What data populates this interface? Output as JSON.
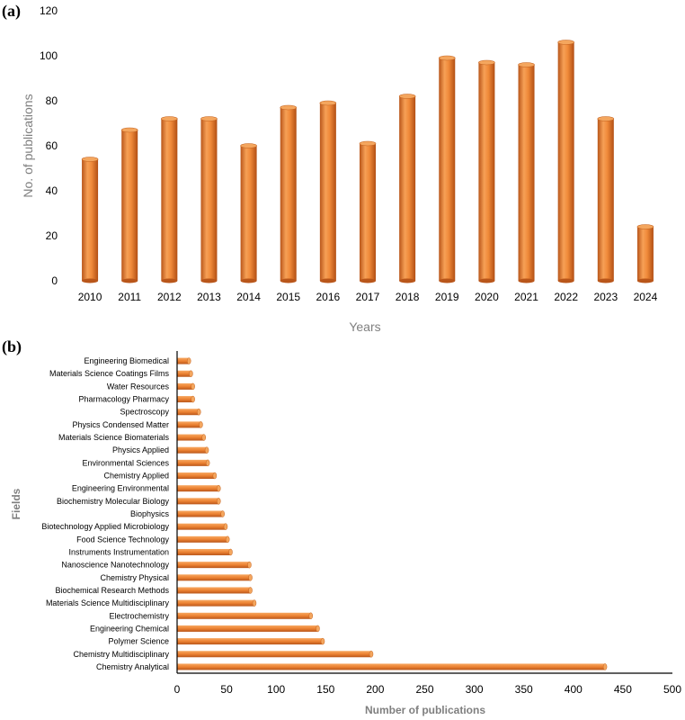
{
  "chart_data": [
    {
      "panel": "(a)",
      "type": "bar",
      "orientation": "vertical",
      "categories": [
        "2010",
        "2011",
        "2012",
        "2013",
        "2014",
        "2015",
        "2016",
        "2017",
        "2018",
        "2019",
        "2020",
        "2021",
        "2022",
        "2023",
        "2024"
      ],
      "values": [
        54,
        67,
        72,
        72,
        60,
        77,
        79,
        61,
        82,
        99,
        97,
        96,
        106,
        72,
        24
      ],
      "xlabel": "Years",
      "ylabel": "No. of publications",
      "ylim": [
        0,
        120
      ],
      "yticks": [
        0,
        20,
        40,
        60,
        80,
        100,
        120
      ],
      "grid": false,
      "bar_color": "#e8792a"
    },
    {
      "panel": "(b)",
      "type": "bar",
      "orientation": "horizontal",
      "categories": [
        "Engineering Biomedical",
        "Materials Science Coatings Films",
        "Water Resources",
        "Pharmacology Pharmacy",
        "Spectroscopy",
        "Physics Condensed Matter",
        "Materials Science Biomaterials",
        "Physics Applied",
        "Environmental Sciences",
        "Chemistry Applied",
        "Engineering Environmental",
        "Biochemistry Molecular Biology",
        "Biophysics",
        "Biotechnology Applied Microbiology",
        "Food Science Technology",
        "Instruments Instrumentation",
        "Nanoscience Nanotechnology",
        "Chemistry Physical",
        "Biochemical Research Methods",
        "Materials Science Multidisciplinary",
        "Electrochemistry",
        "Engineering Chemical",
        "Polymer Science",
        "Chemistry Multidisciplinary",
        "Chemistry Analytical"
      ],
      "values": [
        12,
        14,
        16,
        16,
        22,
        24,
        27,
        30,
        31,
        38,
        42,
        42,
        46,
        49,
        51,
        54,
        73,
        74,
        74,
        78,
        135,
        142,
        147,
        196,
        432
      ],
      "xlabel": "Number of publications",
      "ylabel": "Fields",
      "xlim": [
        0,
        500
      ],
      "xticks": [
        0,
        50,
        100,
        150,
        200,
        250,
        300,
        350,
        400,
        450,
        500
      ],
      "grid": false,
      "bar_color": "#e8792a"
    }
  ]
}
